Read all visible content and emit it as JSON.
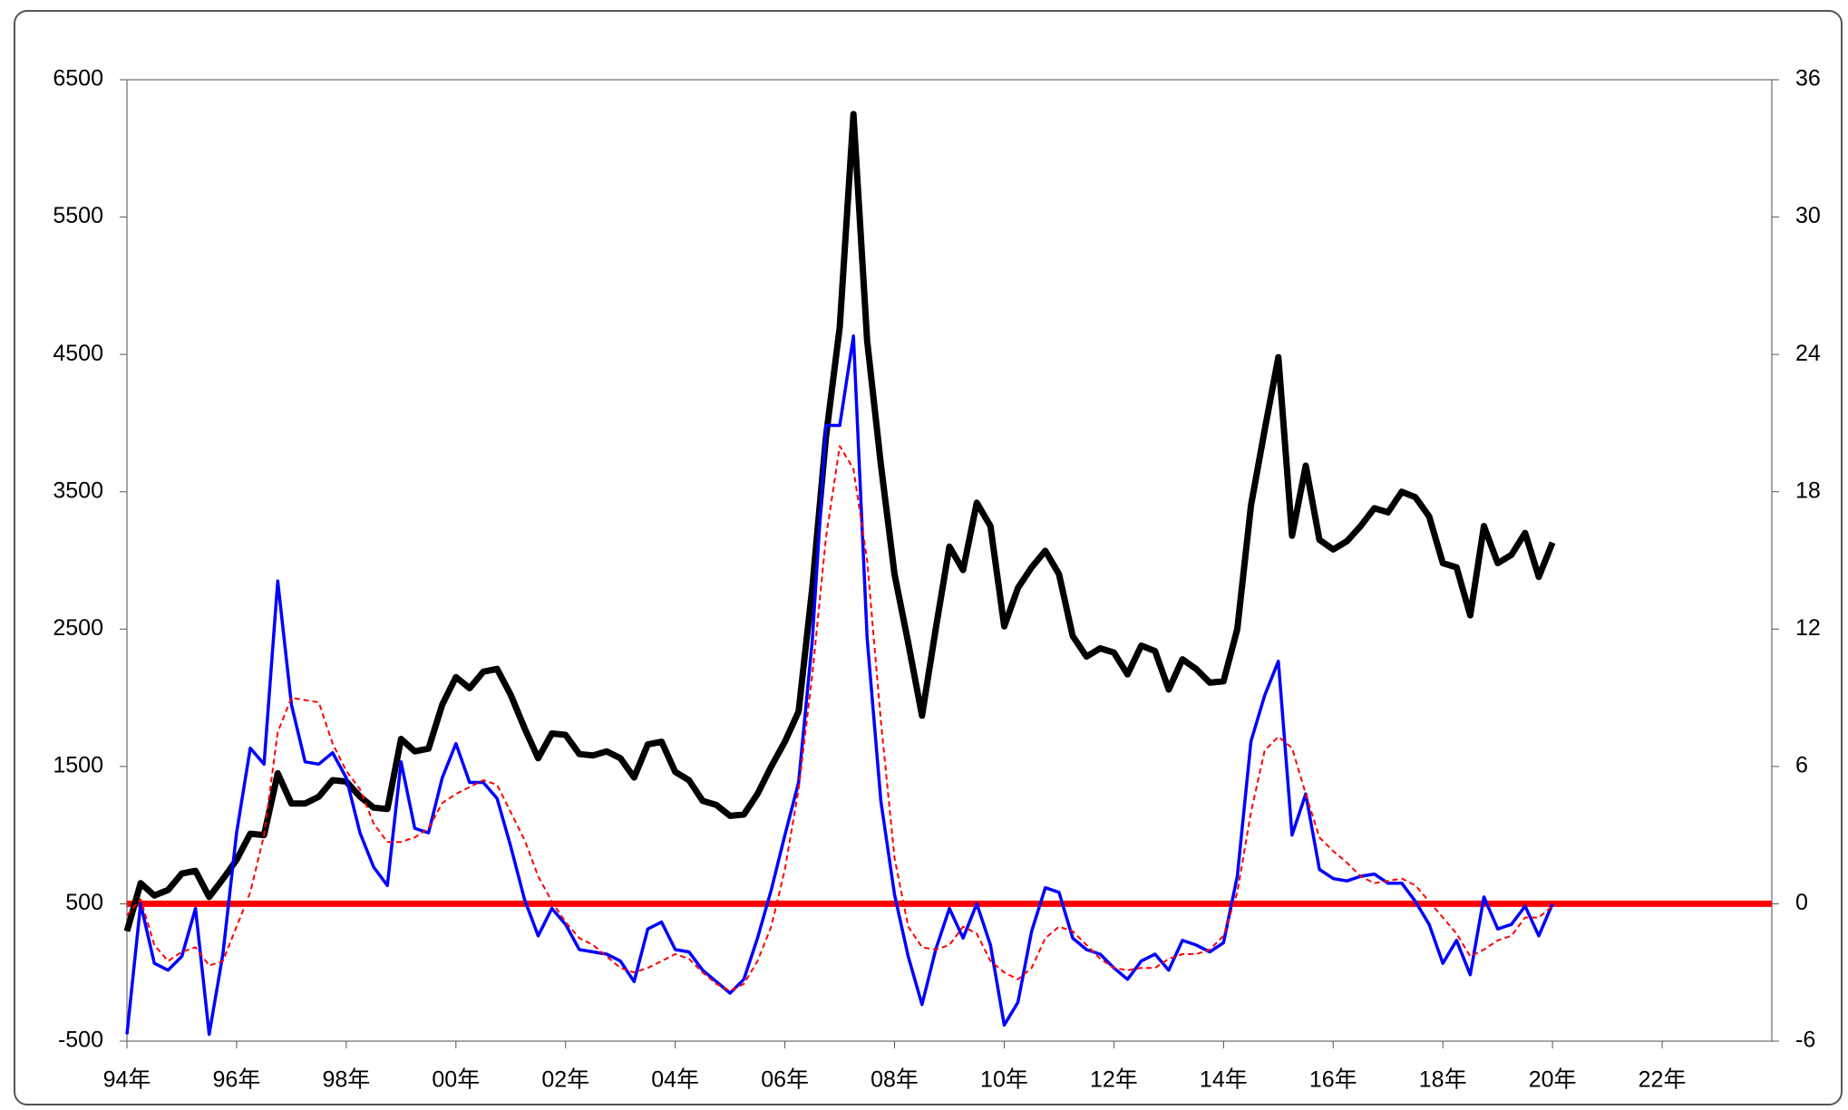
{
  "chart_data": {
    "type": "line",
    "x": [
      1994,
      1994.25,
      1994.5,
      1994.75,
      1995,
      1995.25,
      1995.5,
      1995.75,
      1996,
      1996.25,
      1996.5,
      1996.75,
      1997,
      1997.25,
      1997.5,
      1997.75,
      1998,
      1998.25,
      1998.5,
      1998.75,
      1999,
      1999.25,
      1999.5,
      1999.75,
      2000,
      2000.25,
      2000.5,
      2000.75,
      2001,
      2001.25,
      2001.5,
      2001.75,
      2002,
      2002.25,
      2002.5,
      2002.75,
      2003,
      2003.25,
      2003.5,
      2003.75,
      2004,
      2004.25,
      2004.5,
      2004.75,
      2005,
      2005.25,
      2005.5,
      2005.75,
      2006,
      2006.25,
      2006.5,
      2006.75,
      2007,
      2007.25,
      2007.5,
      2007.75,
      2008,
      2008.25,
      2008.5,
      2008.75,
      2009,
      2009.25,
      2009.5,
      2009.75,
      2010,
      2010.25,
      2010.5,
      2010.75,
      2011,
      2011.25,
      2011.5,
      2011.75,
      2012,
      2012.25,
      2012.5,
      2012.75,
      2013,
      2013.25,
      2013.5,
      2013.75,
      2014,
      2014.25,
      2014.5,
      2014.75,
      2015,
      2015.25,
      2015.5,
      2015.75,
      2016,
      2016.25,
      2016.5,
      2016.75,
      2017,
      2017.25,
      2017.5,
      2017.75,
      2018,
      2018.25,
      2018.5,
      2018.75,
      2019,
      2019.25,
      2019.5,
      2019.75,
      2020
    ],
    "series": [
      {
        "color": "#000000",
        "width": 7,
        "values": [
          300,
          650,
          560,
          600,
          720,
          740,
          550,
          680,
          820,
          1010,
          1000,
          1450,
          1230,
          1230,
          1280,
          1400,
          1390,
          1280,
          1200,
          1190,
          1700,
          1610,
          1630,
          1950,
          2150,
          2070,
          2190,
          2210,
          2020,
          1780,
          1560,
          1740,
          1730,
          1590,
          1580,
          1610,
          1560,
          1420,
          1660,
          1680,
          1460,
          1400,
          1250,
          1220,
          1140,
          1150,
          1300,
          1500,
          1680,
          1900,
          2800,
          3900,
          4700,
          6250,
          4600,
          3700,
          2900,
          2400,
          1870,
          2500,
          3100,
          2930,
          3420,
          3250,
          2520,
          2800,
          2950,
          3070,
          2900,
          2450,
          2300,
          2360,
          2330,
          2170,
          2380,
          2340,
          2060,
          2280,
          2210,
          2110,
          2120,
          2500,
          3400,
          3950,
          4480,
          3180,
          3690,
          3150,
          3080,
          3140,
          3250,
          3380,
          3350,
          3500,
          3460,
          3320,
          2980,
          2950,
          2600,
          3250,
          2980,
          3040,
          3200,
          2880,
          3130
        ]
      },
      {
        "color": "#0000ff",
        "width": 3.5,
        "axis": "y2",
        "values": [
          -5.7,
          0,
          -2.6,
          -2.9,
          -2.3,
          -0.2,
          -5.7,
          -2.2,
          3.1,
          6.8,
          6.1,
          14.1,
          8.7,
          6.2,
          6.1,
          6.6,
          5.5,
          3.1,
          1.6,
          0.8,
          6.2,
          3.3,
          3.1,
          5.5,
          7.0,
          5.3,
          5.3,
          4.6,
          2.5,
          0.2,
          -1.4,
          -0.2,
          -0.9,
          -2.0,
          -2.1,
          -2.2,
          -2.5,
          -3.4,
          -1.1,
          -0.8,
          -2.0,
          -2.1,
          -2.9,
          -3.4,
          -3.9,
          -3.3,
          -1.5,
          0.6,
          3.0,
          5.3,
          11.5,
          20.9,
          20.9,
          24.8,
          11.6,
          4.5,
          0.4,
          -2.3,
          -4.4,
          -2.0,
          -0.2,
          -1.5,
          0,
          -1.8,
          -5.3,
          -4.3,
          -1.2,
          0.7,
          0.5,
          -1.5,
          -2.0,
          -2.2,
          -2.8,
          -3.3,
          -2.5,
          -2.2,
          -2.9,
          -1.6,
          -1.8,
          -2.1,
          -1.7,
          1.2,
          7.1,
          9.1,
          10.6,
          3.0,
          4.8,
          1.5,
          1.1,
          1.0,
          1.2,
          1.3,
          0.9,
          0.9,
          0.1,
          -0.9,
          -2.6,
          -1.6,
          -3.1,
          0.3,
          -1.1,
          -0.9,
          -0.1,
          -1.4,
          0
        ]
      },
      {
        "color": "#ff0000",
        "width": 2,
        "dashed": true,
        "axis": "y2",
        "values": [
          -0.5,
          0.2,
          -1.8,
          -2.5,
          -2.1,
          -1.9,
          -2.7,
          -2.5,
          -1.0,
          0.5,
          3.0,
          7.5,
          9.0,
          8.9,
          8.8,
          7.0,
          5.8,
          5.0,
          3.5,
          2.7,
          2.7,
          2.9,
          3.3,
          4.4,
          4.8,
          5.1,
          5.4,
          5.2,
          4.0,
          2.8,
          1.2,
          0.1,
          -0.8,
          -1.5,
          -1.8,
          -2.3,
          -2.8,
          -3.0,
          -2.8,
          -2.5,
          -2.2,
          -2.4,
          -3.0,
          -3.5,
          -3.8,
          -3.5,
          -2.5,
          -1.0,
          1.5,
          5.0,
          10.0,
          16.0,
          20.0,
          19.0,
          15.0,
          8.0,
          2.0,
          -1.0,
          -1.9,
          -2.0,
          -1.8,
          -1.0,
          -1.3,
          -2.5,
          -3.0,
          -3.3,
          -2.8,
          -1.5,
          -1.0,
          -1.2,
          -1.8,
          -2.4,
          -2.8,
          -2.9,
          -2.8,
          -2.8,
          -2.4,
          -2.2,
          -2.2,
          -2.0,
          -1.4,
          0.5,
          4.0,
          6.7,
          7.3,
          6.8,
          4.8,
          2.9,
          2.3,
          1.8,
          1.2,
          0.9,
          1.0,
          1.1,
          0.8,
          0.1,
          -0.6,
          -1.3,
          -2.3,
          -2.0,
          -1.6,
          -1.4,
          -0.6,
          -0.6,
          -0.1
        ]
      }
    ],
    "reference_line": {
      "axis": "y2",
      "value": 0,
      "color": "#ff0000"
    },
    "xlim": [
      1994,
      2024
    ],
    "xticks": [
      {
        "value": 1994,
        "label": "94年"
      },
      {
        "value": 1996,
        "label": "96年"
      },
      {
        "value": 1998,
        "label": "98年"
      },
      {
        "value": 2000,
        "label": "00年"
      },
      {
        "value": 2002,
        "label": "02年"
      },
      {
        "value": 2004,
        "label": "04年"
      },
      {
        "value": 2006,
        "label": "06年"
      },
      {
        "value": 2008,
        "label": "08年"
      },
      {
        "value": 2010,
        "label": "10年"
      },
      {
        "value": 2012,
        "label": "12年"
      },
      {
        "value": 2014,
        "label": "14年"
      },
      {
        "value": 2016,
        "label": "16年"
      },
      {
        "value": 2018,
        "label": "18年"
      },
      {
        "value": 2020,
        "label": "20年"
      },
      {
        "value": 2022,
        "label": "22年"
      }
    ],
    "ylim": [
      -500,
      6500
    ],
    "yticks": [
      -500,
      500,
      1500,
      2500,
      3500,
      4500,
      5500,
      6500
    ],
    "y2lim": [
      -6,
      36
    ],
    "y2ticks": [
      -6,
      0,
      6,
      12,
      18,
      24,
      30,
      36
    ],
    "grid": false
  }
}
